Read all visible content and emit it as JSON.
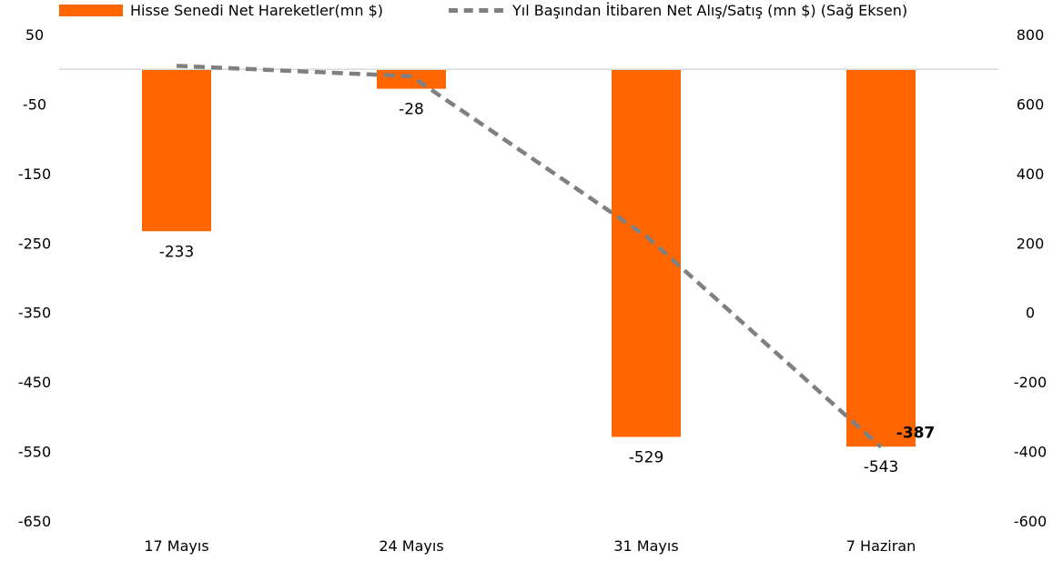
{
  "chart_data": {
    "type": "bar",
    "categories": [
      "17 Mayıs",
      "24 Mayıs",
      "31 Mayıs",
      "7 Haziran"
    ],
    "series": [
      {
        "name": "Hisse Senedi Net Hareketler(mn $)",
        "type": "bar",
        "axis": "left",
        "color": "#FF6600",
        "values": [
          -233,
          -28,
          -529,
          -543
        ],
        "labels": [
          "-233",
          "-28",
          "-529",
          "-543"
        ]
      },
      {
        "name": "Yıl Başından İtibaren Net Alış/Satış (mn $) (Sağ Eksen)",
        "type": "line",
        "style": "dashed",
        "axis": "right",
        "color": "#808080",
        "values": [
          710,
          680,
          220,
          -387
        ],
        "last_label": "-387"
      }
    ],
    "y_left": {
      "ylim": [
        -650,
        50
      ],
      "ticks": [
        "50",
        "-50",
        "-150",
        "-250",
        "-350",
        "-450",
        "-550",
        "-650"
      ]
    },
    "y_right": {
      "ylim": [
        -600,
        800
      ],
      "ticks": [
        "800",
        "600",
        "400",
        "200",
        "0",
        "-200",
        "-400",
        "-600"
      ]
    },
    "grid": false,
    "legend": "top"
  }
}
